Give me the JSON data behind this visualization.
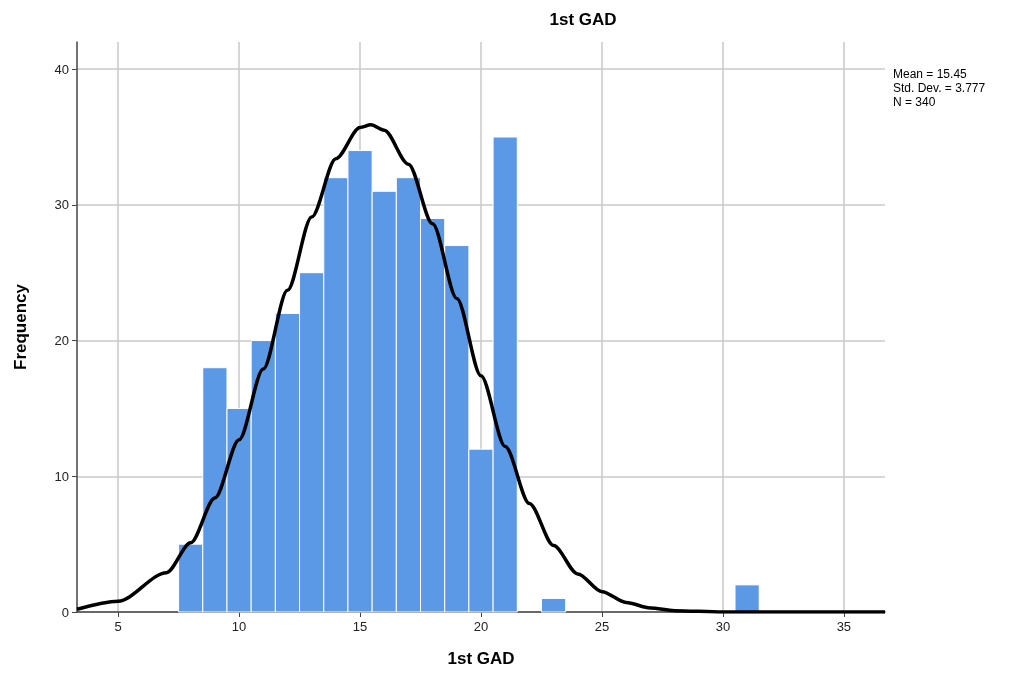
{
  "chart_data": {
    "type": "histogram",
    "title": "1st GAD",
    "xlabel": "1st GAD",
    "ylabel": "Frequency",
    "bins": [
      7.5,
      8.5,
      9.5,
      10.5,
      11.5,
      12.5,
      13.5,
      14.5,
      15.5,
      16.5,
      17.5,
      18.5,
      19.5,
      20.5,
      21.5,
      22.5,
      23.5,
      24.5,
      25.5,
      26.5,
      27.5,
      28.5,
      29.5,
      30.5,
      31.5
    ],
    "values": [
      5,
      18,
      15,
      20,
      22,
      25,
      32,
      34,
      31,
      32,
      29,
      27,
      12,
      35,
      0,
      1,
      0,
      0,
      0,
      0,
      0,
      0,
      0,
      2
    ],
    "color": "#5b98e6",
    "series": [
      {
        "type": "line",
        "color": "#000000",
        "marker": "none",
        "x": [
          3.3,
          5,
          7,
          8,
          9,
          10,
          11,
          12,
          13,
          14,
          15,
          15.45,
          16,
          17,
          18,
          19,
          20,
          21,
          22,
          23,
          24,
          25,
          26,
          27,
          28,
          30,
          33,
          36.7
        ],
        "values": [
          0.2,
          0.8,
          2.9,
          5.1,
          8.4,
          12.7,
          17.9,
          23.7,
          29.1,
          33.4,
          35.7,
          35.9,
          35.5,
          33.0,
          28.6,
          23.1,
          17.4,
          12.2,
          8.0,
          4.9,
          2.8,
          1.5,
          0.7,
          0.3,
          0.1,
          0,
          0,
          0
        ]
      }
    ],
    "xlim": [
      3.3,
      36.7
    ],
    "xticks": [
      5,
      10,
      15,
      20,
      25,
      30,
      35
    ],
    "ylim": [
      0,
      42
    ],
    "yticks": [
      0,
      10,
      20,
      30,
      40
    ],
    "grid": true,
    "annotations": [
      "Mean = 15.45",
      "Std. Dev. = 3.777",
      "N = 340"
    ]
  }
}
